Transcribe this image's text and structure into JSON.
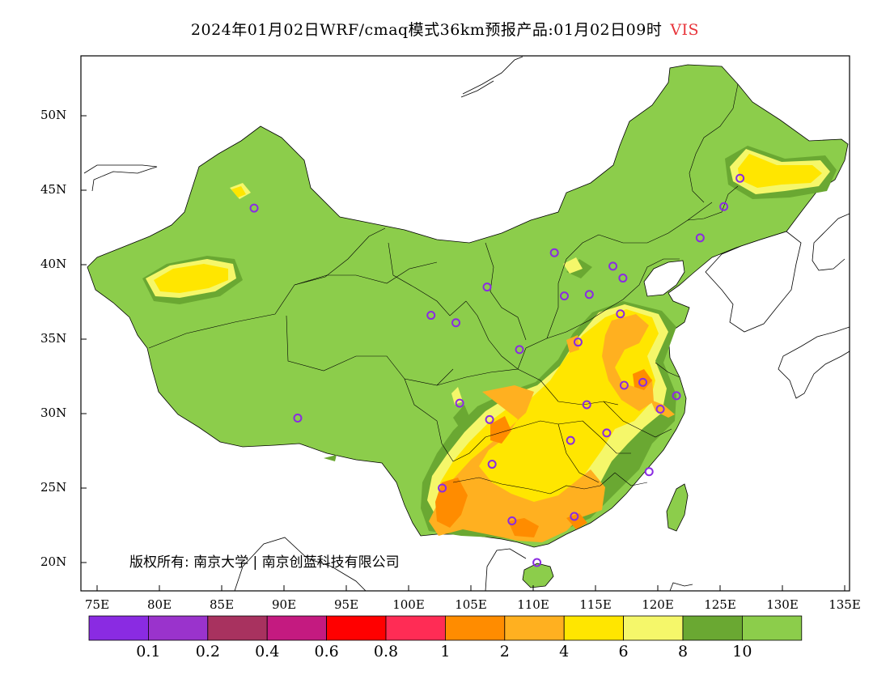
{
  "title": {
    "main": "2024年01月02日WRF/cmaq模式36km预报产品:01月02日09时",
    "variable": "VIS",
    "variable_color": "#e8343a"
  },
  "copyright": "版权所有: 南京大学 | 南京创蓝科技有限公司",
  "axes": {
    "lon_labels": [
      "75E",
      "80E",
      "85E",
      "90E",
      "95E",
      "100E",
      "105E",
      "110E",
      "115E",
      "120E",
      "125E",
      "130E",
      "135E"
    ],
    "lat_labels": [
      "50N",
      "45N",
      "40N",
      "35N",
      "30N",
      "25N",
      "20N"
    ]
  },
  "colorbar": {
    "colors": [
      "#8a2be2",
      "#9a33cc",
      "#a8325f",
      "#c41a80",
      "#ff0000",
      "#ff2c55",
      "#ff8c00",
      "#ffb020",
      "#ffe600",
      "#f5f76a",
      "#6aa832",
      "#8ccd4b"
    ],
    "labels": [
      "0.1",
      "0.2",
      "0.4",
      "0.6",
      "0.8",
      "1",
      "2",
      "4",
      "6",
      "8",
      "10"
    ]
  },
  "stations": [
    {
      "lon": 87.6,
      "lat": 43.8
    },
    {
      "lon": 91.1,
      "lat": 29.7
    },
    {
      "lon": 101.8,
      "lat": 36.6
    },
    {
      "lon": 103.8,
      "lat": 36.1
    },
    {
      "lon": 106.3,
      "lat": 38.5
    },
    {
      "lon": 104.1,
      "lat": 30.7
    },
    {
      "lon": 106.5,
      "lat": 29.6
    },
    {
      "lon": 106.7,
      "lat": 26.6
    },
    {
      "lon": 102.7,
      "lat": 25.0
    },
    {
      "lon": 108.3,
      "lat": 22.8
    },
    {
      "lon": 110.3,
      "lat": 20.0
    },
    {
      "lon": 113.3,
      "lat": 23.1
    },
    {
      "lon": 113.0,
      "lat": 28.2
    },
    {
      "lon": 114.3,
      "lat": 30.6
    },
    {
      "lon": 115.9,
      "lat": 28.7
    },
    {
      "lon": 119.3,
      "lat": 26.1
    },
    {
      "lon": 120.2,
      "lat": 30.3
    },
    {
      "lon": 121.5,
      "lat": 31.2
    },
    {
      "lon": 118.8,
      "lat": 32.1
    },
    {
      "lon": 117.3,
      "lat": 31.9
    },
    {
      "lon": 113.6,
      "lat": 34.8
    },
    {
      "lon": 108.9,
      "lat": 34.3
    },
    {
      "lon": 112.5,
      "lat": 37.9
    },
    {
      "lon": 114.5,
      "lat": 38.0
    },
    {
      "lon": 117.0,
      "lat": 36.7
    },
    {
      "lon": 116.4,
      "lat": 39.9
    },
    {
      "lon": 117.2,
      "lat": 39.1
    },
    {
      "lon": 111.7,
      "lat": 40.8
    },
    {
      "lon": 123.4,
      "lat": 41.8
    },
    {
      "lon": 125.3,
      "lat": 43.9
    },
    {
      "lon": 126.6,
      "lat": 45.8
    }
  ]
}
